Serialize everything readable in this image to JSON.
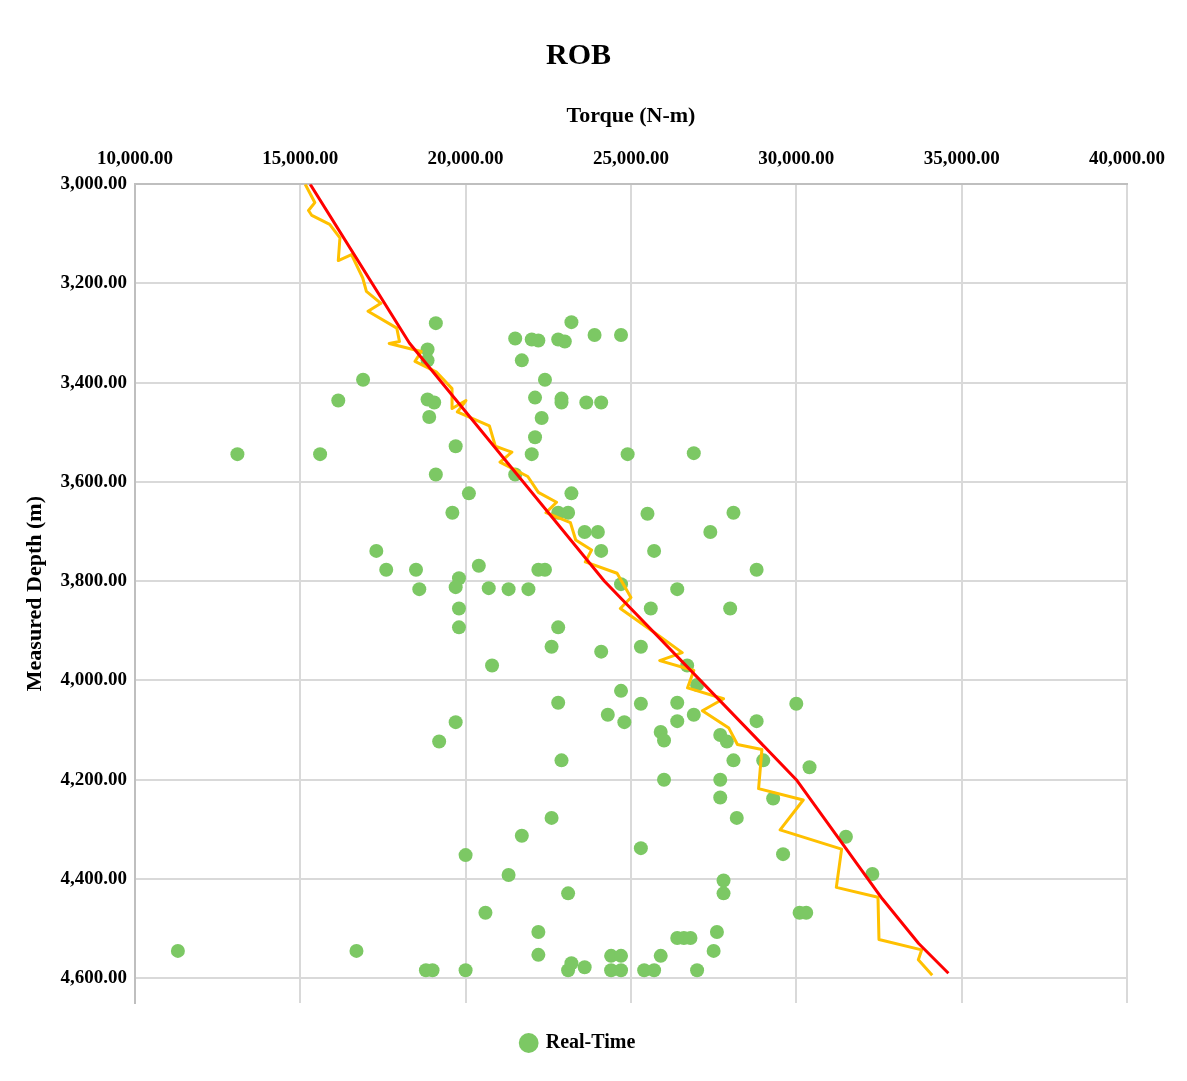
{
  "chart_data": {
    "type": "line",
    "title": "ROB",
    "xlabel": "Torque (N-m)",
    "ylabel": "Measured Depth (m)",
    "xlim": [
      10000,
      40000
    ],
    "xticks": [
      {
        "value": 10000,
        "label": "10,000.00"
      },
      {
        "value": 15000,
        "label": "15,000.00"
      },
      {
        "value": 20000,
        "label": "20,000.00"
      },
      {
        "value": 25000,
        "label": "25,000.00"
      },
      {
        "value": 30000,
        "label": "30,000.00"
      },
      {
        "value": 35000,
        "label": "35,000.00"
      },
      {
        "value": 40000,
        "label": "40,000.00"
      }
    ],
    "ylim": [
      4650,
      3000
    ],
    "yticks": [
      {
        "value": 3000,
        "label": "3,000.00"
      },
      {
        "value": 3200,
        "label": "3,200.00"
      },
      {
        "value": 3400,
        "label": "3,400.00"
      },
      {
        "value": 3600,
        "label": "3,600.00"
      },
      {
        "value": 3800,
        "label": "3,800.00"
      },
      {
        "value": 4000,
        "label": "4,000.00"
      },
      {
        "value": 4200,
        "label": "4,200.00"
      },
      {
        "value": 4400,
        "label": "4,400.00"
      },
      {
        "value": 4600,
        "label": "4,600.00"
      }
    ],
    "grid": true,
    "legend": "bottom",
    "series": [
      {
        "color": "#ff0000",
        "x": [
          15300,
          18300,
          24200,
          30000,
          32600,
          33700,
          34600
        ],
        "values": [
          3000,
          3320,
          3800,
          4200,
          4440,
          4530,
          4590
        ]
      },
      {
        "color": "#ffc000",
        "x": [
          15150,
          15440,
          15250,
          15350,
          15890,
          16200,
          16150,
          16550,
          16890,
          17000,
          17440,
          17050,
          17920,
          18000,
          17690,
          18660,
          18470,
          19110,
          19590,
          19590,
          20010,
          19750,
          20720,
          20900,
          21400,
          21040,
          21880,
          22200,
          22750,
          22430,
          23170,
          23330,
          23810,
          23620,
          24580,
          25000,
          24680,
          25740,
          26550,
          25870,
          26900,
          26710,
          27800,
          27160,
          27960,
          28220,
          28960,
          28860,
          30210,
          29510,
          31370,
          31210,
          32470,
          32500,
          33790,
          33690,
          34110
        ],
        "values": [
          3000,
          3037,
          3053,
          3063,
          3081,
          3108,
          3154,
          3142,
          3189,
          3216,
          3240,
          3256,
          3290,
          3317,
          3321,
          3337,
          3357,
          3378,
          3412,
          3452,
          3436,
          3459,
          3487,
          3528,
          3540,
          3560,
          3589,
          3621,
          3641,
          3662,
          3682,
          3717,
          3737,
          3761,
          3784,
          3833,
          3855,
          3905,
          3944,
          3960,
          3980,
          4015,
          4037,
          4061,
          4096,
          4129,
          4139,
          4218,
          4241,
          4301,
          4340,
          4417,
          4437,
          4522,
          4543,
          4563,
          4594
        ]
      },
      {
        "type": "scatter",
        "name": "Real-Time",
        "color": "#7cc864",
        "marker": "circle",
        "x": [
          19100,
          18850,
          18850,
          21500,
          22000,
          22200,
          22800,
          23000,
          23200,
          23900,
          24700,
          21700,
          16900,
          22400,
          16150,
          18850,
          19050,
          22100,
          22900,
          22900,
          23650,
          24100,
          18900,
          22300,
          22100,
          19700,
          13100,
          15600,
          22000,
          24900,
          26900,
          19100,
          21500,
          20100,
          23200,
          19600,
          22800,
          23100,
          25500,
          28100,
          17300,
          23600,
          24000,
          27400,
          24100,
          25700,
          17600,
          18500,
          20400,
          22200,
          22400,
          28800,
          19800,
          18600,
          19700,
          20700,
          21300,
          21900,
          24700,
          26400,
          19800,
          25600,
          28000,
          19800,
          22800,
          22600,
          25300,
          24100,
          20800,
          26700,
          27000,
          24700,
          22800,
          25300,
          26400,
          30000,
          24300,
          24800,
          26900,
          28800,
          26400,
          19700,
          25900,
          27700,
          27900,
          26000,
          19200,
          22900,
          28100,
          29000,
          30400,
          26000,
          27700,
          27700,
          29300,
          28200,
          22600,
          31500,
          21700,
          25300,
          20000,
          29600,
          21300,
          32300,
          27800,
          23100,
          27800,
          20600,
          30100,
          30300,
          22200,
          27600,
          26400,
          26600,
          26800,
          11300,
          16700,
          27500,
          22200,
          24400,
          24700,
          25900,
          23100,
          23200,
          23600,
          24400,
          24700,
          25400,
          25700,
          27000,
          18800,
          19000,
          20000
        ],
        "values": [
          3280,
          3333,
          3355,
          3311,
          3313,
          3315,
          3313,
          3317,
          3278,
          3304,
          3304,
          3355,
          3394,
          3394,
          3436,
          3434,
          3440,
          3430,
          3432,
          3440,
          3440,
          3440,
          3469,
          3471,
          3510,
          3528,
          3544,
          3544,
          3544,
          3544,
          3542,
          3585,
          3585,
          3623,
          3623,
          3662,
          3662,
          3662,
          3664,
          3662,
          3739,
          3701,
          3701,
          3701,
          3739,
          3739,
          3777,
          3777,
          3769,
          3777,
          3777,
          3777,
          3794,
          3816,
          3812,
          3814,
          3816,
          3816,
          3806,
          3816,
          3855,
          3855,
          3855,
          3893,
          3893,
          3932,
          3932,
          3942,
          3970,
          3970,
          4009,
          4021,
          4045,
          4047,
          4045,
          4047,
          4069,
          4084,
          4069,
          4082,
          4082,
          4084,
          4104,
          4110,
          4123,
          4121,
          4123,
          4161,
          4161,
          4161,
          4175,
          4200,
          4200,
          4236,
          4238,
          4277,
          4277,
          4315,
          4313,
          4338,
          4352,
          4350,
          4392,
          4390,
          4403,
          4429,
          4429,
          4468,
          4468,
          4468,
          4507,
          4507,
          4519,
          4519,
          4519,
          4545,
          4545,
          4545,
          4553,
          4555,
          4555,
          4555,
          4584,
          4570,
          4578,
          4584,
          4584,
          4584,
          4584,
          4584,
          4584,
          4584,
          4584
        ]
      }
    ]
  }
}
